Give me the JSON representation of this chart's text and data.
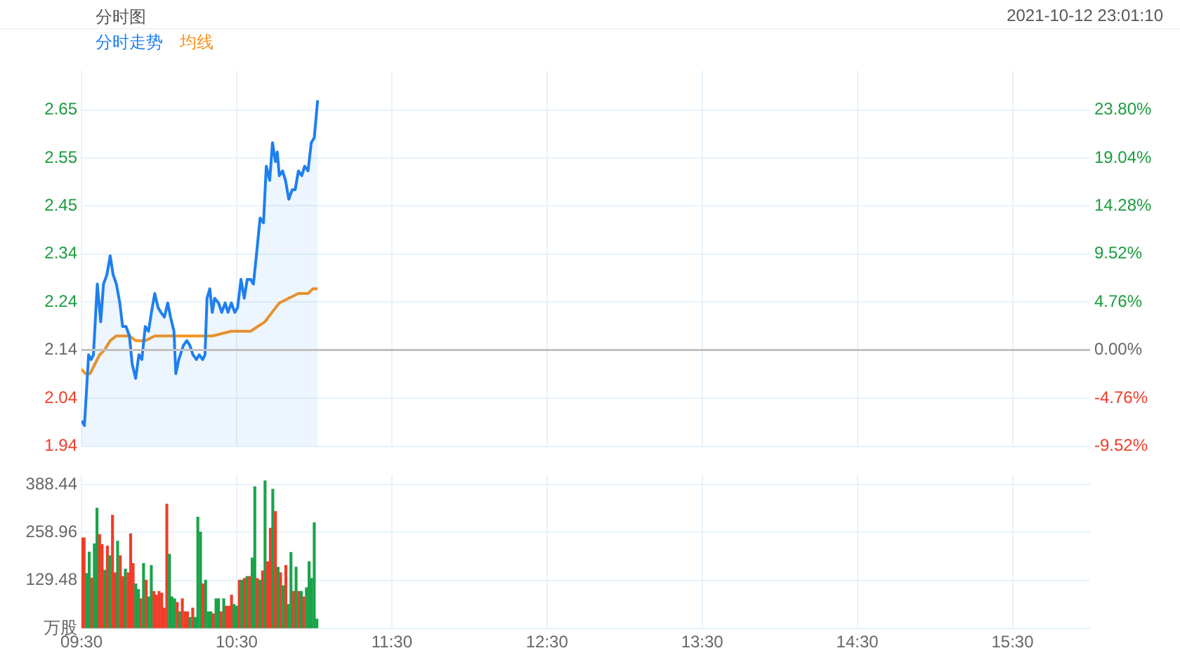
{
  "chart_data": [
    {
      "type": "line",
      "title": "分时图",
      "annotations": [
        "2021-10-12 23:01:10"
      ],
      "legend": "top left",
      "grid": true,
      "tick_labels": "y",
      "xlim": [
        9.5,
        16.0
      ],
      "xticks": [
        {
          "value": 9.5,
          "label": null
        },
        {
          "value": 10.5,
          "label": null
        },
        {
          "value": 11.5,
          "label": null
        },
        {
          "value": 12.5,
          "label": null
        },
        {
          "value": 13.5,
          "label": null
        },
        {
          "value": 14.5,
          "label": null
        },
        {
          "value": 15.5,
          "label": null
        }
      ],
      "ylim": [
        1.936,
        2.733
      ],
      "yticks": [
        {
          "value": 1.936,
          "label": "1.94"
        },
        {
          "value": 2.038,
          "label": "2.04"
        },
        2.14,
        {
          "value": 2.242,
          "label": "2.24"
        },
        {
          "value": 2.344,
          "label": "2.34"
        },
        {
          "value": 2.446,
          "label": "2.45"
        },
        {
          "value": 2.547,
          "label": "2.55"
        },
        {
          "value": 2.649,
          "label": "2.65"
        }
      ],
      "y2lim": [
        -9.53,
        27.71
      ],
      "y2ticks": [
        {
          "value": -9.52,
          "label": "-9.52%"
        },
        {
          "value": -4.76,
          "label": "-4.76%"
        },
        {
          "value": 0,
          "label": "0.00%"
        },
        {
          "value": 4.76,
          "label": "4.76%"
        },
        {
          "value": 9.52,
          "label": "9.52%"
        },
        {
          "value": 14.28,
          "label": "14.28%"
        },
        {
          "value": 19.04,
          "label": "19.04%"
        },
        {
          "value": 23.8,
          "label": "23.80%"
        }
      ],
      "ref_lines": [
        {
          "axis": "y",
          "value": 2.14,
          "color": "#c0c0c0"
        }
      ],
      "series": [
        {
          "name": "分时走势",
          "type": "area",
          "color": "#1e7ff0",
          "x": [
            9.5,
            9.519,
            9.546,
            9.562,
            9.577,
            9.602,
            9.624,
            9.642,
            9.664,
            9.685,
            9.704,
            9.725,
            9.747,
            9.765,
            9.787,
            9.809,
            9.827,
            9.849,
            9.87,
            9.889,
            9.911,
            9.932,
            9.951,
            9.972,
            9.994,
            10.012,
            10.034,
            10.056,
            10.074,
            10.096,
            10.108,
            10.127,
            10.157,
            10.179,
            10.198,
            10.219,
            10.241,
            10.259,
            10.281,
            10.296,
            10.309,
            10.327,
            10.343,
            10.358,
            10.383,
            10.404,
            10.426,
            10.444,
            10.466,
            10.488,
            10.506,
            10.528,
            10.549,
            10.568,
            10.59,
            10.608,
            10.627,
            10.651,
            10.673,
            10.691,
            10.713,
            10.731,
            10.75,
            10.762,
            10.775,
            10.796,
            10.815,
            10.836,
            10.858,
            10.877,
            10.898,
            10.92,
            10.938,
            10.96,
            10.981,
            11.0,
            11.022
          ],
          "values": [
            1.99,
            1.98,
            2.13,
            2.12,
            2.13,
            2.28,
            2.2,
            2.28,
            2.3,
            2.34,
            2.3,
            2.28,
            2.24,
            2.19,
            2.19,
            2.17,
            2.11,
            2.08,
            2.13,
            2.12,
            2.19,
            2.18,
            2.22,
            2.26,
            2.23,
            2.22,
            2.21,
            2.24,
            2.21,
            2.18,
            2.09,
            2.12,
            2.15,
            2.16,
            2.15,
            2.13,
            2.12,
            2.13,
            2.12,
            2.13,
            2.25,
            2.27,
            2.22,
            2.25,
            2.24,
            2.22,
            2.24,
            2.22,
            2.24,
            2.22,
            2.23,
            2.29,
            2.25,
            2.29,
            2.29,
            2.28,
            2.34,
            2.42,
            2.41,
            2.53,
            2.5,
            2.58,
            2.54,
            2.56,
            2.51,
            2.52,
            2.5,
            2.46,
            2.48,
            2.48,
            2.52,
            2.51,
            2.53,
            2.52,
            2.58,
            2.59,
            2.67
          ]
        },
        {
          "name": "均线",
          "type": "line",
          "color": "#f7931e",
          "x": [
            9.5,
            9.525,
            9.556,
            9.586,
            9.617,
            9.648,
            9.685,
            9.725,
            9.765,
            9.809,
            9.849,
            9.911,
            9.972,
            10.074,
            10.127,
            10.219,
            10.296,
            10.343,
            10.466,
            10.59,
            10.636,
            10.682,
            10.728,
            10.775,
            10.836,
            10.898,
            10.96,
            10.991,
            11.022
          ],
          "values": [
            2.1,
            2.09,
            2.09,
            2.11,
            2.13,
            2.14,
            2.16,
            2.17,
            2.17,
            2.17,
            2.16,
            2.16,
            2.17,
            2.17,
            2.17,
            2.17,
            2.17,
            2.17,
            2.18,
            2.18,
            2.19,
            2.2,
            2.22,
            2.24,
            2.25,
            2.26,
            2.26,
            2.27,
            2.27
          ]
        }
      ]
    },
    {
      "type": "bar",
      "grid": true,
      "xlim": [
        9.5,
        16.0
      ],
      "xticks": [
        {
          "value": 9.5,
          "label": "09:30"
        },
        {
          "value": 10.5,
          "label": "10:30"
        },
        {
          "value": 11.5,
          "label": "11:30"
        },
        {
          "value": 12.5,
          "label": "12:30"
        },
        {
          "value": 13.5,
          "label": "13:30"
        },
        {
          "value": 14.5,
          "label": "14:30"
        },
        {
          "value": 15.5,
          "label": "15:30"
        }
      ],
      "ylim": [
        0,
        414
      ],
      "yticks": [
        {
          "value": 0,
          "label": "万股"
        },
        129.48,
        258.96,
        388.44
      ],
      "x": [
        9.5,
        9.517,
        9.533,
        9.55,
        9.567,
        9.583,
        9.6,
        9.617,
        9.633,
        9.65,
        9.667,
        9.683,
        9.7,
        9.717,
        9.733,
        9.75,
        9.767,
        9.783,
        9.8,
        9.817,
        9.833,
        9.85,
        9.867,
        9.883,
        9.9,
        9.917,
        9.933,
        9.95,
        9.967,
        9.983,
        10.0,
        10.017,
        10.033,
        10.05,
        10.067,
        10.083,
        10.1,
        10.117,
        10.133,
        10.15,
        10.167,
        10.183,
        10.2,
        10.217,
        10.233,
        10.25,
        10.267,
        10.283,
        10.3,
        10.317,
        10.333,
        10.35,
        10.367,
        10.383,
        10.4,
        10.417,
        10.433,
        10.45,
        10.467,
        10.483,
        10.5,
        10.517,
        10.533,
        10.55,
        10.567,
        10.583,
        10.6,
        10.617,
        10.633,
        10.65,
        10.667,
        10.683,
        10.7,
        10.717,
        10.733,
        10.75,
        10.767,
        10.783,
        10.8,
        10.817,
        10.833,
        10.85,
        10.867,
        10.883,
        10.9,
        10.917,
        10.933,
        10.95,
        10.967,
        10.983,
        11.0,
        11.017
      ],
      "values": [
        244,
        244,
        148,
        206,
        136,
        228,
        324,
        253,
        226,
        157,
        222,
        196,
        305,
        150,
        235,
        196,
        140,
        160,
        150,
        255,
        175,
        120,
        105,
        80,
        175,
        130,
        85,
        170,
        100,
        90,
        100,
        95,
        55,
        335,
        200,
        85,
        80,
        70,
        45,
        80,
        45,
        45,
        30,
        55,
        30,
        300,
        260,
        120,
        130,
        45,
        45,
        40,
        80,
        80,
        45,
        80,
        60,
        60,
        90,
        65,
        60,
        130,
        130,
        135,
        140,
        140,
        190,
        382,
        135,
        130,
        155,
        398,
        180,
        270,
        375,
        315,
        165,
        150,
        115,
        170,
        65,
        205,
        100,
        165,
        100,
        100,
        85,
        110,
        180,
        135,
        285,
        25
      ],
      "colors": [
        "#f03c28",
        "#f03c28",
        "#1aa34a",
        "#1aa34a",
        "#f03c28",
        "#1aa34a",
        "#1aa34a",
        "#f03c28",
        "#f03c28",
        "#1aa34a",
        "#f03c28",
        "#1aa34a",
        "#f03c28",
        "#f03c28",
        "#1aa34a",
        "#f03c28",
        "#f03c28",
        "#1aa34a",
        "#f03c28",
        "#f03c28",
        "#f03c28",
        "#1aa34a",
        "#1aa34a",
        "#f03c28",
        "#1aa34a",
        "#f03c28",
        "#1aa34a",
        "#1aa34a",
        "#f03c28",
        "#f03c28",
        "#f03c28",
        "#f03c28",
        "#f03c28",
        "#f03c28",
        "#1aa34a",
        "#1aa34a",
        "#1aa34a",
        "#f03c28",
        "#1aa34a",
        "#f03c28",
        "#f03c28",
        "#f03c28",
        "#1aa34a",
        "#f03c28",
        "#1aa34a",
        "#1aa34a",
        "#1aa34a",
        "#f03c28",
        "#1aa34a",
        "#1aa34a",
        "#1aa34a",
        "#f03c28",
        "#1aa34a",
        "#1aa34a",
        "#f03c28",
        "#1aa34a",
        "#f03c28",
        "#f03c28",
        "#f03c28",
        "#1aa34a",
        "#1aa34a",
        "#f03c28",
        "#1aa34a",
        "#f03c28",
        "#1aa34a",
        "#f03c28",
        "#1aa34a",
        "#1aa34a",
        "#f03c28",
        "#1aa34a",
        "#f03c28",
        "#1aa34a",
        "#f03c28",
        "#f03c28",
        "#1aa34a",
        "#f03c28",
        "#1aa34a",
        "#f03c28",
        "#1aa34a",
        "#f03c28",
        "#1aa34a",
        "#1aa34a",
        "#f03c28",
        "#1aa34a",
        "#f03c28",
        "#1aa34a",
        "#f03c28",
        "#1aa34a",
        "#1aa34a",
        "#1aa34a",
        "#1aa34a",
        "#1aa34a"
      ]
    }
  ]
}
